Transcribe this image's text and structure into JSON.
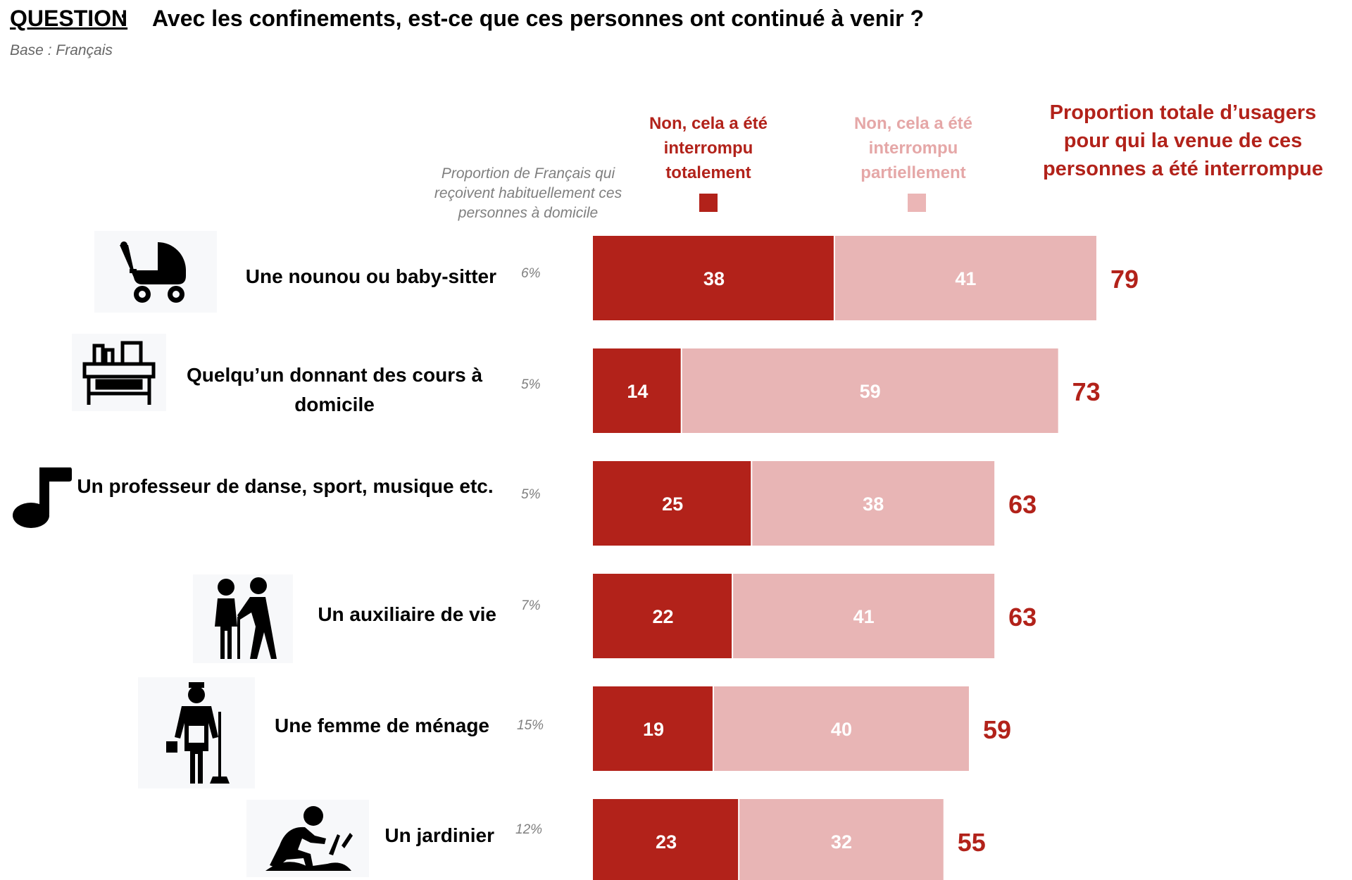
{
  "header": {
    "question_label": "QUESTION",
    "question_colon": ":",
    "question_text": "Avec les confinements, est-ce que ces personnes ont continué à venir ?",
    "base_note": "Base : Français"
  },
  "columns": {
    "share_header": "Proportion de Français qui reçoivent habituellement ces personnes à domicile",
    "total_header": "Proportion totale d’usagers pour qui la venue de ces personnes a été interrompue"
  },
  "colors": {
    "full": "#b2221a",
    "partial": "#e8b5b5",
    "total_text": "#b2221a"
  },
  "rows": [
    {
      "label": "Une nounou ou baby-sitter",
      "share": "6%",
      "icon": "baby-stroller-icon"
    },
    {
      "label": "Quelqu’un donnant des cours à domicile",
      "share": "5%",
      "icon": "desk-icon"
    },
    {
      "label": "Un professeur de danse, sport, musique etc.",
      "share": "5%",
      "icon": "music-note-icon"
    },
    {
      "label": "Un auxiliaire de vie",
      "share": "7%",
      "icon": "elderly-couple-icon"
    },
    {
      "label": "Une femme de ménage",
      "share": "15%",
      "icon": "cleaner-icon"
    },
    {
      "label": "Un jardinier",
      "share": "12%",
      "icon": "gardener-icon"
    }
  ],
  "chart_data": {
    "type": "bar",
    "orientation": "horizontal",
    "stacked": true,
    "categories": [
      "Une nounou ou baby-sitter",
      "Quelqu’un donnant des cours à domicile",
      "Un professeur de danse, sport, musique etc.",
      "Un auxiliaire de vie",
      "Une femme de ménage",
      "Un jardinier"
    ],
    "series": [
      {
        "name": "Non, cela a été interrompu totalement",
        "values": [
          38,
          14,
          25,
          22,
          19,
          23
        ]
      },
      {
        "name": "Non, cela a été interrompu partiellement",
        "values": [
          41,
          59,
          38,
          41,
          40,
          32
        ]
      }
    ],
    "totals": [
      79,
      73,
      63,
      63,
      59,
      55
    ],
    "xlim": [
      0,
      100
    ],
    "grid": false,
    "legend": "top"
  }
}
